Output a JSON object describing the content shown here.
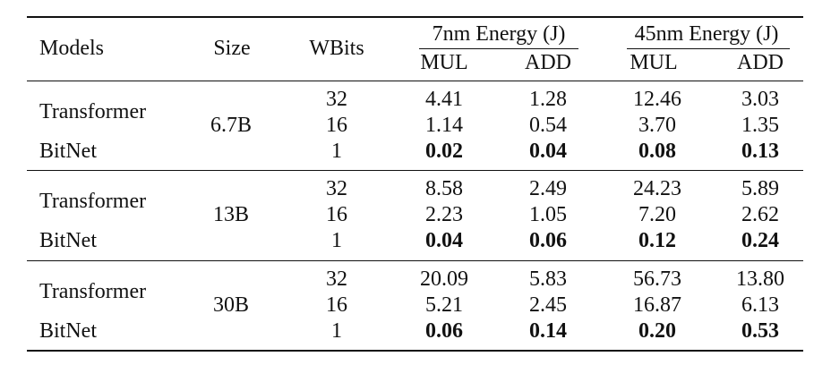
{
  "table": {
    "headers": {
      "models": "Models",
      "size": "Size",
      "wbits": "WBits",
      "group_7nm": "7nm Energy (J)",
      "group_45nm": "45nm Energy (J)",
      "mul_7nm": "MUL",
      "add_7nm": "ADD",
      "mul_45nm": "MUL",
      "add_45nm": "ADD"
    },
    "groups": [
      {
        "size": "6.7B",
        "transformer_label": "Transformer",
        "bitnet_label": "BitNet",
        "rows": [
          {
            "wbits": "32",
            "mul_7nm": "4.41",
            "add_7nm": "1.28",
            "mul_45nm": "12.46",
            "add_45nm": "3.03"
          },
          {
            "wbits": "16",
            "mul_7nm": "1.14",
            "add_7nm": "0.54",
            "mul_45nm": "3.70",
            "add_45nm": "1.35"
          },
          {
            "wbits": "1",
            "mul_7nm": "0.02",
            "add_7nm": "0.04",
            "mul_45nm": "0.08",
            "add_45nm": "0.13"
          }
        ]
      },
      {
        "size": "13B",
        "transformer_label": "Transformer",
        "bitnet_label": "BitNet",
        "rows": [
          {
            "wbits": "32",
            "mul_7nm": "8.58",
            "add_7nm": "2.49",
            "mul_45nm": "24.23",
            "add_45nm": "5.89"
          },
          {
            "wbits": "16",
            "mul_7nm": "2.23",
            "add_7nm": "1.05",
            "mul_45nm": "7.20",
            "add_45nm": "2.62"
          },
          {
            "wbits": "1",
            "mul_7nm": "0.04",
            "add_7nm": "0.06",
            "mul_45nm": "0.12",
            "add_45nm": "0.24"
          }
        ]
      },
      {
        "size": "30B",
        "transformer_label": "Transformer",
        "bitnet_label": "BitNet",
        "rows": [
          {
            "wbits": "32",
            "mul_7nm": "20.09",
            "add_7nm": "5.83",
            "mul_45nm": "56.73",
            "add_45nm": "13.80"
          },
          {
            "wbits": "16",
            "mul_7nm": "5.21",
            "add_7nm": "2.45",
            "mul_45nm": "16.87",
            "add_45nm": "6.13"
          },
          {
            "wbits": "1",
            "mul_7nm": "0.06",
            "add_7nm": "0.14",
            "mul_45nm": "0.20",
            "add_45nm": "0.53"
          }
        ]
      }
    ]
  }
}
